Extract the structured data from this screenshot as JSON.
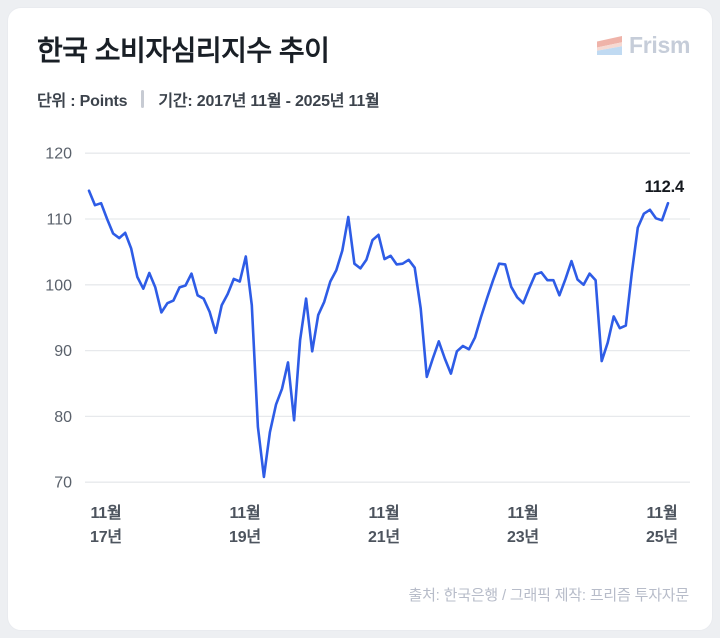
{
  "header": {
    "title": "한국 소비자심리지수 추이",
    "unit_label": "단위 : Points",
    "period_label": "기간: 2017년 11월 - 2025년 11월",
    "logo_text": "Frism"
  },
  "footer": {
    "source": "출처: 한국은행 / 그래픽 제작: 프리즘 투자자문"
  },
  "colors": {
    "line": "#2e5ce6",
    "grid": "#e7e9ec",
    "axis_label": "#5a616b",
    "x_label": "#4d545e",
    "annotation": "#15191f",
    "title": "#191f26",
    "subtitle": "#3c434c",
    "footer_text": "#b7bcc9",
    "logo_text": "#c6cdd9",
    "logo_pink": "#efb3a9",
    "logo_pale": "#f6d9d2",
    "logo_blue": "#c0daf2",
    "card_bg": "#ffffff",
    "page_bg": "#edeff2"
  },
  "chart_data": {
    "type": "line",
    "title": "한국 소비자심리지수 추이",
    "unit": "Points",
    "period": "2017년 11월 - 2025년 11월",
    "frequency": "monthly",
    "x_start": "2017-11",
    "x_end": "2025-11",
    "ylim": [
      67,
      123
    ],
    "y_ticks": [
      120,
      110,
      100,
      90,
      80,
      70
    ],
    "x_tick_labels": [
      {
        "line1": "11월",
        "line2": "17년"
      },
      {
        "line1": "11월",
        "line2": "19년"
      },
      {
        "line1": "11월",
        "line2": "21년"
      },
      {
        "line1": "11월",
        "line2": "23년"
      },
      {
        "line1": "11월",
        "line2": "25년"
      }
    ],
    "grid": true,
    "legend_position": "none",
    "last_value_label": "112.4",
    "values": [
      114.3,
      112.1,
      112.4,
      110.0,
      107.8,
      107.1,
      107.9,
      105.5,
      101.2,
      99.4,
      101.8,
      99.6,
      95.8,
      97.2,
      97.6,
      99.6,
      99.9,
      101.7,
      98.4,
      97.9,
      95.9,
      92.7,
      96.9,
      98.6,
      100.9,
      100.5,
      104.3,
      96.9,
      78.4,
      70.8,
      77.6,
      81.8,
      84.2,
      88.2,
      79.4,
      91.6,
      97.9,
      89.9,
      95.4,
      97.4,
      100.5,
      102.2,
      105.2,
      110.3,
      103.2,
      102.5,
      103.8,
      106.8,
      107.6,
      103.9,
      104.4,
      103.1,
      103.2,
      103.8,
      102.6,
      96.4,
      86.0,
      88.8,
      91.4,
      88.8,
      86.5,
      89.9,
      90.7,
      90.2,
      92.0,
      95.1,
      98.0,
      100.7,
      103.2,
      103.1,
      99.7,
      98.1,
      97.2,
      99.5,
      101.6,
      101.9,
      100.7,
      100.7,
      98.4,
      100.9,
      103.6,
      100.8,
      100.0,
      101.7,
      100.7,
      88.4,
      91.2,
      95.2,
      93.4,
      93.8,
      101.8,
      108.7,
      110.8,
      111.4,
      110.1,
      109.8,
      112.4
    ]
  }
}
